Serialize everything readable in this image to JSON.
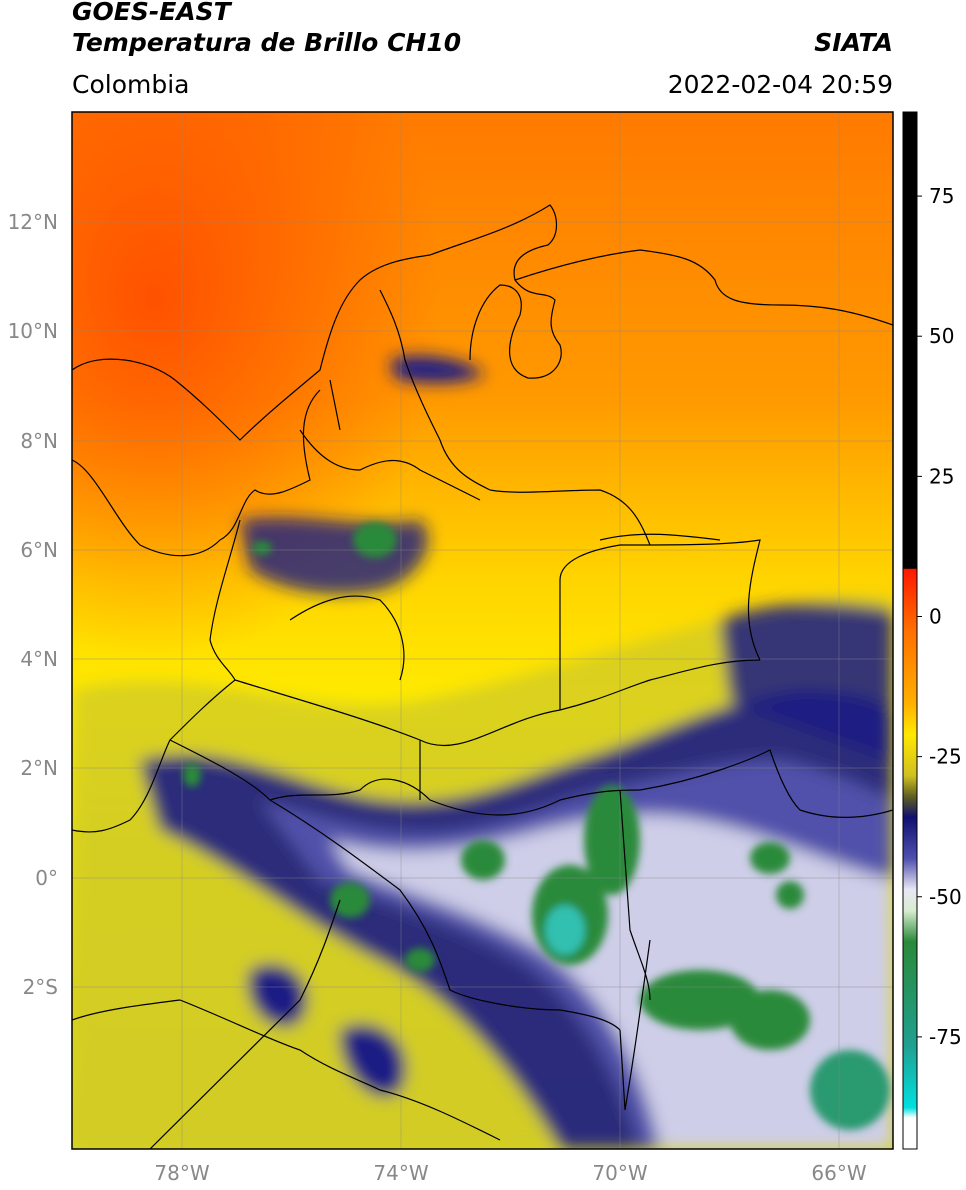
{
  "header": {
    "satellite": "GOES-EAST",
    "product": "Temperatura de Brillo CH10",
    "brand": "SIATA",
    "region": "Colombia",
    "timestamp": "2022-02-04 20:59"
  },
  "map": {
    "lat_labels": [
      "12°N",
      "10°N",
      "8°N",
      "6°N",
      "4°N",
      "2°N",
      "0°",
      "2°S"
    ],
    "lon_labels": [
      "78°W",
      "74°W",
      "70°W",
      "66°W"
    ],
    "lon_range": [
      -80,
      -65
    ],
    "lat_range": [
      -5,
      14
    ]
  },
  "colorbar": {
    "ticks": [
      "75",
      "50",
      "25",
      "0",
      "-25",
      "-50",
      "-75"
    ],
    "tick_values": [
      75,
      50,
      25,
      0,
      -25,
      -50,
      -75
    ],
    "range": [
      -95,
      90
    ],
    "colors": {
      "warmest": "#000000",
      "red": "#ff2000",
      "orange": "#ff8c00",
      "yellow": "#ffee00",
      "olive": "#c8c030",
      "dark_blue": "#101080",
      "white": "#ffffff",
      "green": "#2a8a3a",
      "teal": "#00d8d0"
    }
  }
}
